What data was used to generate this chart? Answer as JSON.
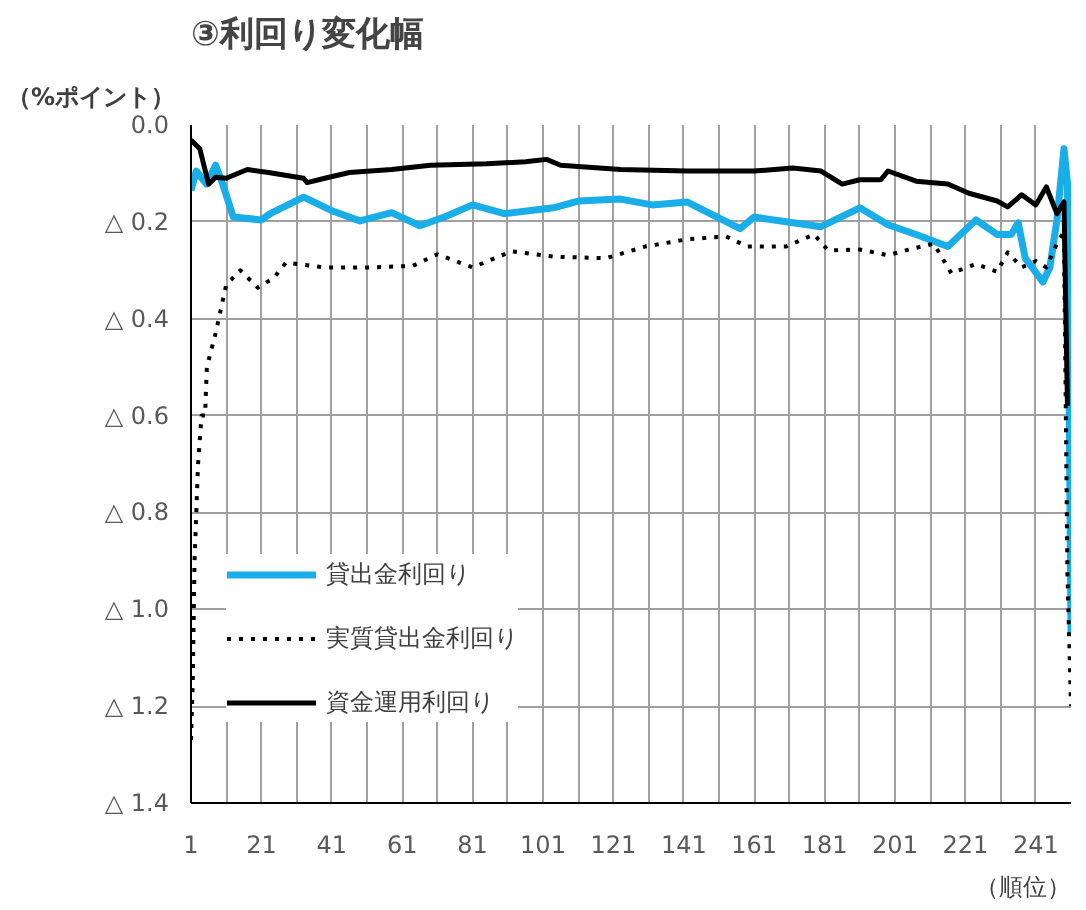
{
  "chart_data": {
    "type": "line",
    "title": "③利回り変化幅",
    "ylabel": "（%ポイント）",
    "xlabel": "（順位）",
    "xlim": [
      1,
      251
    ],
    "xticks": [
      1,
      21,
      41,
      61,
      81,
      101,
      121,
      141,
      161,
      181,
      201,
      221,
      241
    ],
    "ylim": [
      -1.4,
      0
    ],
    "yticks": [
      {
        "value": 0,
        "label": "0.0"
      },
      {
        "value": -0.2,
        "label": "△ 0.2"
      },
      {
        "value": -0.4,
        "label": "△ 0.4"
      },
      {
        "value": -0.6,
        "label": "△ 0.6"
      },
      {
        "value": -0.8,
        "label": "△ 0.8"
      },
      {
        "value": -1.0,
        "label": "△ 1.0"
      },
      {
        "value": -1.2,
        "label": "△ 1.2"
      },
      {
        "value": -1.4,
        "label": "△ 1.4"
      }
    ],
    "grid": true,
    "legend": "bottom left",
    "marker": "none",
    "series": [
      {
        "name": "貸出金利回り",
        "color": "#1aaee8",
        "line_style": "solid",
        "x": [
          1,
          2.5,
          5.4,
          8,
          10,
          13,
          21,
          23.5,
          33,
          41,
          49,
          58,
          66,
          73,
          81,
          90,
          104,
          111,
          123,
          132,
          142,
          157,
          161,
          172,
          180,
          191,
          199,
          207,
          216,
          224,
          230,
          234,
          236,
          238,
          243,
          245,
          247,
          249,
          250,
          251
        ],
        "values": [
          -0.135,
          -0.095,
          -0.122,
          -0.083,
          -0.122,
          -0.19,
          -0.196,
          -0.183,
          -0.149,
          -0.177,
          -0.198,
          -0.181,
          -0.208,
          -0.19,
          -0.165,
          -0.183,
          -0.171,
          -0.157,
          -0.153,
          -0.165,
          -0.159,
          -0.214,
          -0.19,
          -0.202,
          -0.21,
          -0.171,
          -0.206,
          -0.226,
          -0.251,
          -0.196,
          -0.226,
          -0.226,
          -0.202,
          -0.275,
          -0.324,
          -0.294,
          -0.196,
          -0.049,
          -0.12,
          -1.05
        ]
      },
      {
        "name": "実質貸出金利回り",
        "color": "#000000",
        "line_style": "dotted",
        "x": [
          1,
          1.5,
          2,
          3,
          4,
          5,
          5.5,
          8,
          11,
          15,
          20,
          24.5,
          28,
          39,
          52,
          64,
          71,
          81,
          92,
          104,
          119,
          130,
          142,
          153,
          159,
          170,
          178,
          182,
          191,
          199,
          205,
          212,
          217,
          224,
          230,
          233,
          237,
          241,
          244,
          247,
          249,
          250,
          251
        ],
        "values": [
          -1.27,
          -1.15,
          -0.9,
          -0.7,
          -0.6,
          -0.6,
          -0.5,
          -0.43,
          -0.33,
          -0.3,
          -0.336,
          -0.316,
          -0.284,
          -0.294,
          -0.294,
          -0.291,
          -0.267,
          -0.294,
          -0.261,
          -0.272,
          -0.275,
          -0.251,
          -0.236,
          -0.23,
          -0.251,
          -0.251,
          -0.226,
          -0.259,
          -0.257,
          -0.269,
          -0.257,
          -0.245,
          -0.306,
          -0.287,
          -0.303,
          -0.263,
          -0.294,
          -0.281,
          -0.294,
          -0.245,
          -0.22,
          -0.93,
          -1.2
        ]
      },
      {
        "name": "資金運用利回り",
        "color": "#000000",
        "line_style": "solid",
        "x": [
          1,
          3.5,
          6,
          8,
          11,
          17,
          23,
          33,
          34,
          39,
          46,
          58,
          69,
          85,
          96,
          102,
          106,
          123,
          142,
          161,
          172,
          180,
          186,
          191,
          197,
          199,
          207,
          216,
          222,
          230,
          233,
          237,
          241,
          244,
          247,
          249,
          250
        ],
        "values": [
          -0.031,
          -0.049,
          -0.122,
          -0.108,
          -0.11,
          -0.092,
          -0.098,
          -0.11,
          -0.119,
          -0.11,
          -0.098,
          -0.092,
          -0.083,
          -0.08,
          -0.076,
          -0.071,
          -0.083,
          -0.092,
          -0.095,
          -0.095,
          -0.089,
          -0.095,
          -0.122,
          -0.113,
          -0.113,
          -0.095,
          -0.116,
          -0.122,
          -0.141,
          -0.157,
          -0.169,
          -0.144,
          -0.165,
          -0.128,
          -0.183,
          -0.159,
          -0.58
        ]
      }
    ]
  }
}
